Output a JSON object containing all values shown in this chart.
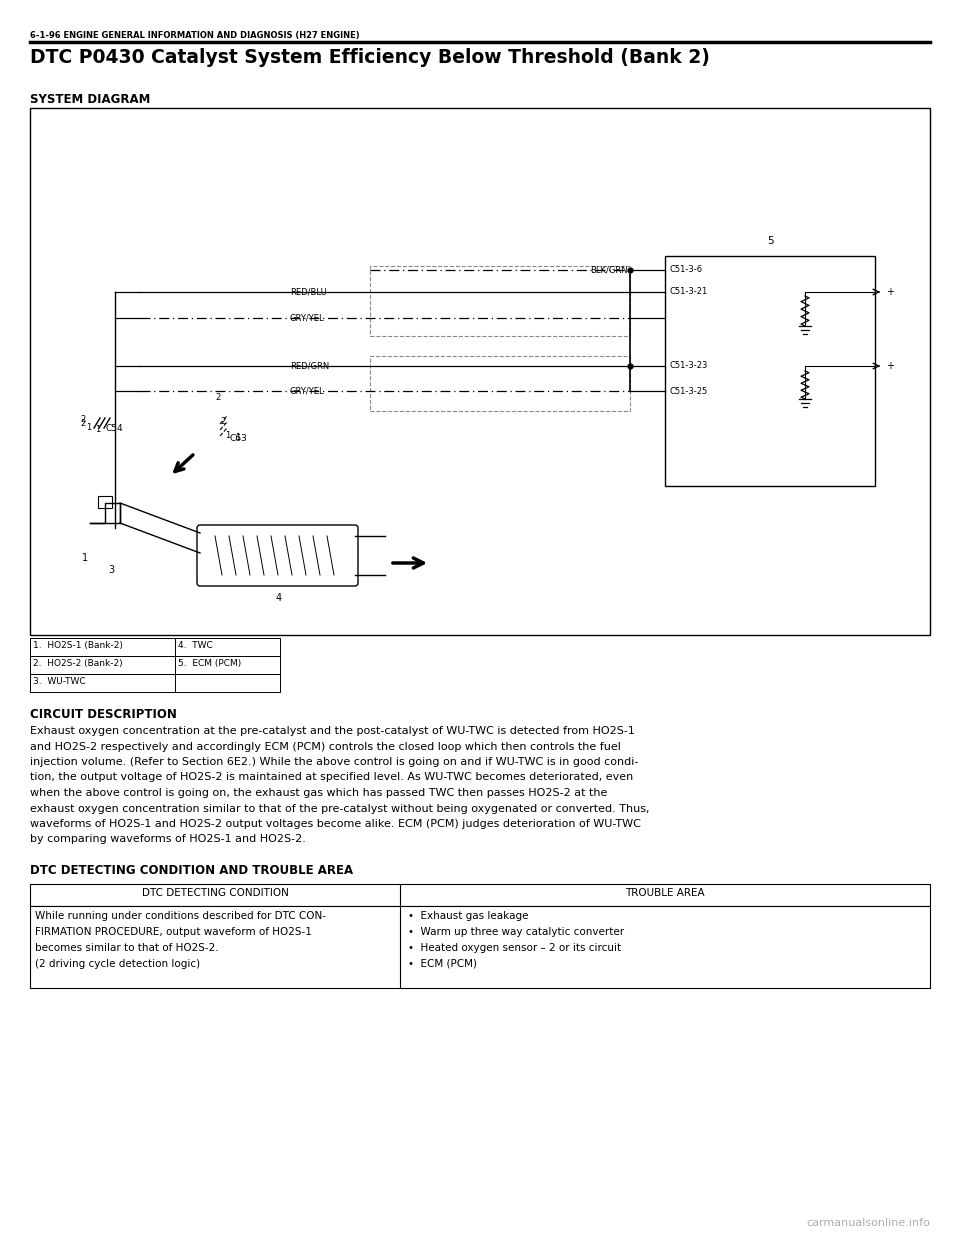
{
  "page_header": "6-1-96 ENGINE GENERAL INFORMATION AND DIAGNOSIS (H27 ENGINE)",
  "main_title": "DTC P0430 Catalyst System Efficiency Below Threshold (Bank 2)",
  "section1_title": "SYSTEM DIAGRAM",
  "legend_items": [
    [
      "1.  HO2S-1 (Bank-2)",
      "4.  TWC"
    ],
    [
      "2.  HO2S-2 (Bank-2)",
      "5.  ECM (PCM)"
    ],
    [
      "3.  WU-TWC",
      ""
    ]
  ],
  "section2_title": "CIRCUIT DESCRIPTION",
  "circuit_description": "Exhaust oxygen concentration at the pre-catalyst and the post-catalyst of WU-TWC is detected from HO2S-1\nand HO2S-2 respectively and accordingly ECM (PCM) controls the closed loop which then controls the fuel\ninjection volume. (Refer to Section 6E2.) While the above control is going on and if WU-TWC is in good condi-\ntion, the output voltage of HO2S-2 is maintained at specified level. As WU-TWC becomes deteriorated, even\nwhen the above control is going on, the exhaust gas which has passed TWC then passes HO2S-2 at the\nexhaust oxygen concentration similar to that of the pre-catalyst without being oxygenated or converted. Thus,\nwaveforms of HO2S-1 and HO2S-2 output voltages become alike. ECM (PCM) judges deterioration of WU-TWC\nby comparing waveforms of HO2S-1 and HO2S-2.",
  "section3_title": "DTC DETECTING CONDITION AND TROUBLE AREA",
  "table_col1_header": "DTC DETECTING CONDITION",
  "table_col2_header": "TROUBLE AREA",
  "table_col1_lines": [
    "While running under conditions described for DTC CON-",
    "FIRMATION PROCEDURE, output waveform of HO2S-1",
    "becomes similar to that of HO2S-2.",
    "(2 driving cycle detection logic)"
  ],
  "table_col2_bullets": [
    "Exhaust gas leakage",
    "Warm up three way catalytic converter",
    "Heated oxygen sensor – 2 or its circuit",
    "ECM (PCM)"
  ],
  "watermark": "carmanualsonline.info",
  "bg_color": "#ffffff"
}
